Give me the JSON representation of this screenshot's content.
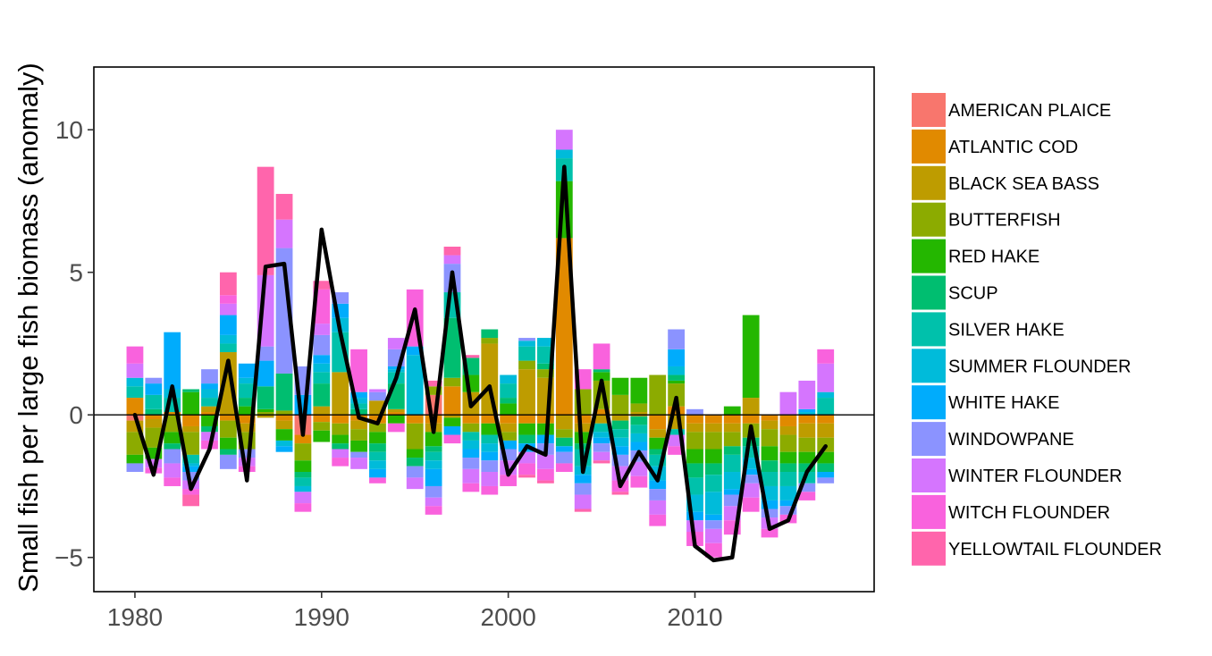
{
  "chart_data": {
    "type": "bar",
    "stacked": true,
    "title": "",
    "xlabel": "",
    "ylabel": "Small fish per large fish biomass (anomaly)",
    "xlim": [
      1977.8,
      2019.6
    ],
    "ylim": [
      -6.2,
      12.2
    ],
    "x_ticks": [
      1980,
      1990,
      2000,
      2010
    ],
    "y_ticks": [
      -5,
      0,
      5,
      10
    ],
    "y_tick_labels": [
      "−5",
      "0",
      "5",
      "10"
    ],
    "zero_line": true,
    "grid": false,
    "legend_position": "right",
    "x": [
      1980,
      1981,
      1982,
      1983,
      1984,
      1985,
      1986,
      1987,
      1988,
      1989,
      1990,
      1991,
      1992,
      1993,
      1994,
      1995,
      1996,
      1997,
      1998,
      1999,
      2000,
      2001,
      2002,
      2003,
      2004,
      2005,
      2006,
      2007,
      2008,
      2009,
      2010,
      2011,
      2012,
      2013,
      2014,
      2015,
      2016,
      2017
    ],
    "series": [
      {
        "name": "AMERICAN PLAICE",
        "color": "#F8766D",
        "values": [
          -0.2,
          0,
          0,
          0,
          0,
          0,
          0,
          0,
          0,
          -0.7,
          0,
          0,
          0,
          0,
          0,
          0,
          0.7,
          0,
          0,
          0,
          0,
          0,
          0,
          0,
          0,
          0,
          0,
          0,
          0,
          0,
          0,
          0,
          0,
          0,
          0,
          0,
          0,
          0
        ]
      },
      {
        "name": "ATLANTIC COD",
        "color": "#E18A00",
        "values": [
          0.6,
          -0.15,
          0.1,
          -0.4,
          0.1,
          -0.2,
          -0.3,
          0,
          -0.2,
          -0.3,
          -0.25,
          -0.3,
          -0.2,
          -0.3,
          0.1,
          -0.3,
          -0.3,
          1.0,
          -0.3,
          -0.3,
          -0.3,
          -0.3,
          -0.3,
          6.2,
          -0.3,
          0.2,
          0,
          -0.05,
          -0.5,
          0.3,
          -0.3,
          -0.3,
          -0.3,
          -0.3,
          -0.2,
          -0.4,
          -0.3,
          -0.3
        ]
      },
      {
        "name": "BLACK SEA BASS",
        "color": "#BE9C00",
        "values": [
          -0.4,
          -0.3,
          0,
          -0.2,
          0.2,
          2.2,
          -0.3,
          -0.1,
          -0.3,
          0,
          0.3,
          1.5,
          -0.3,
          0.5,
          0.1,
          0,
          -0.3,
          -0.1,
          0.8,
          2.5,
          -0.3,
          1.6,
          1.3,
          -0.5,
          -0.3,
          -0.3,
          -0.2,
          0.1,
          -0.3,
          -0.5,
          -0.3,
          -0.3,
          -0.3,
          0.6,
          -0.3,
          -0.3,
          -0.5,
          -0.5
        ]
      },
      {
        "name": "BUTTERFISH",
        "color": "#8CAB00",
        "values": [
          -0.8,
          -0.7,
          -0.6,
          -0.8,
          0,
          -0.6,
          -0.6,
          0.1,
          0.15,
          -0.6,
          -0.3,
          -0.4,
          -0.4,
          -0.3,
          0,
          -0.9,
          0.3,
          0.3,
          -0.3,
          0.2,
          -0.3,
          0.3,
          0.3,
          -0.3,
          0.9,
          1.0,
          0.7,
          0.3,
          1.4,
          0.8,
          -0.6,
          -0.6,
          -0.5,
          -0.5,
          -0.6,
          -0.6,
          -0.5,
          -0.5
        ]
      },
      {
        "name": "RED HAKE",
        "color": "#24B700",
        "values": [
          -0.3,
          -0.4,
          -0.4,
          0.8,
          -0.4,
          -0.4,
          0.3,
          0.1,
          -0.4,
          -0.4,
          -0.4,
          -0.3,
          -0.4,
          -0.4,
          -0.3,
          -0.3,
          -0.5,
          -0.3,
          0.6,
          -0.4,
          0.4,
          -0.4,
          -0.4,
          2.0,
          -0.4,
          0.3,
          0.6,
          0.9,
          -0.4,
          0.1,
          -0.5,
          -0.5,
          0.3,
          2.9,
          -0.5,
          -0.4,
          -0.4,
          -0.4
        ]
      },
      {
        "name": "SCUP",
        "color": "#00BE70",
        "values": [
          0,
          0.2,
          -0.2,
          0.1,
          -0.2,
          -0.2,
          0.3,
          0.8,
          1.3,
          -0.2,
          0.8,
          -0.2,
          0.2,
          -0.3,
          0.9,
          -0.3,
          -0.2,
          2.1,
          0.6,
          0.3,
          0.2,
          -0.3,
          0.2,
          -0.3,
          -0.2,
          0.1,
          -0.3,
          -0.3,
          -0.2,
          0.2,
          -0.5,
          -0.4,
          -0.3,
          -0.3,
          -0.4,
          -0.3,
          -0.3,
          -0.3
        ]
      },
      {
        "name": "SILVER HAKE",
        "color": "#00C1AB",
        "values": [
          0.4,
          0.5,
          0.5,
          -0.3,
          0.3,
          0.3,
          0.5,
          0,
          0,
          -0.3,
          0.4,
          1.4,
          0.2,
          -0.3,
          0.4,
          0,
          -0.3,
          0.9,
          -0.3,
          -0.3,
          0.5,
          0.5,
          0.6,
          0.8,
          -0.6,
          -0.3,
          -0.3,
          -0.3,
          -0.4,
          -0.2,
          -0.6,
          -0.6,
          -0.6,
          -0.4,
          -0.5,
          -0.5,
          -0.4,
          0.6
        ]
      },
      {
        "name": "SUMMER FLOUNDER",
        "color": "#00BBDA",
        "values": [
          0.3,
          0,
          0.3,
          -0.1,
          0.3,
          0.3,
          0.2,
          0,
          -0.2,
          -0.2,
          0.3,
          0.5,
          0.2,
          -0.3,
          0.1,
          2.1,
          -0.3,
          0,
          -0.3,
          -0.3,
          0.3,
          0.2,
          0.3,
          0.3,
          -0.3,
          -0.2,
          -0.3,
          -0.3,
          -0.5,
          0.3,
          -0.6,
          -0.8,
          -0.6,
          -0.4,
          -0.5,
          -0.5,
          0.1,
          0.2
        ]
      },
      {
        "name": "WHITE HAKE",
        "color": "#00ACFC",
        "values": [
          0,
          0.4,
          2.0,
          -0.2,
          0.2,
          0.7,
          0.5,
          0.9,
          -0.2,
          0.7,
          0.3,
          0.5,
          0.2,
          -0.3,
          0.1,
          0.3,
          -0.6,
          -0.3,
          -0.3,
          -0.3,
          -0.3,
          -0.3,
          -0.3,
          -0.2,
          -0.3,
          -0.2,
          -0.3,
          -0.3,
          -0.3,
          0.6,
          -0.3,
          -0.2,
          -0.2,
          -0.2,
          -0.3,
          -0.2,
          0.1,
          -0.2
        ]
      },
      {
        "name": "WINDOWPANE",
        "color": "#8B93FF",
        "values": [
          -0.3,
          0.2,
          -0.5,
          -0.3,
          0.5,
          -0.5,
          -0.3,
          0.5,
          4.4,
          1.0,
          0.7,
          0.4,
          -0.2,
          0.3,
          0.6,
          -0.4,
          -0.4,
          1.0,
          -0.4,
          -0.4,
          -0.4,
          0.1,
          -0.4,
          -0.4,
          -0.4,
          -0.3,
          -0.4,
          -0.4,
          -0.4,
          0.7,
          0.2,
          -0.3,
          -0.4,
          -0.3,
          -0.3,
          -0.3,
          -0.3,
          -0.2
        ]
      },
      {
        "name": "WINTER FLOUNDER",
        "color": "#D575FE",
        "values": [
          0.5,
          -0.3,
          -0.5,
          -0.3,
          -0.3,
          0.4,
          -0.3,
          2.5,
          1.0,
          -0.4,
          0.4,
          -0.3,
          -0.4,
          0.1,
          0.4,
          -0.4,
          -0.3,
          0.3,
          -0.5,
          -0.5,
          -0.5,
          -0.4,
          -0.5,
          0.7,
          -0.5,
          -0.3,
          -0.5,
          -0.5,
          -0.5,
          -0.4,
          -0.4,
          -0.5,
          -0.5,
          -0.5,
          -0.4,
          0.8,
          1.0,
          1.0
        ]
      },
      {
        "name": "WITCH FLOUNDER",
        "color": "#F962DD",
        "values": [
          0.6,
          -0.2,
          -0.3,
          -0.2,
          -0.3,
          0.3,
          -0.2,
          0,
          0,
          -0.3,
          1.2,
          -0.3,
          1.5,
          -0.2,
          -0.3,
          2.0,
          -0.3,
          -0.3,
          -0.3,
          -0.3,
          -0.4,
          -0.4,
          -0.4,
          -0.3,
          0.7,
          0.9,
          -0.4,
          -0.4,
          -0.4,
          -0.3,
          -0.5,
          -0.5,
          -0.5,
          -0.5,
          -0.3,
          -0.3,
          -0.3,
          0.5
        ]
      },
      {
        "name": "YELLOWTAIL FLOUNDER",
        "color": "#FF65AC",
        "values": [
          0,
          0,
          0,
          -0.4,
          0,
          0.8,
          0,
          3.8,
          0.9,
          0,
          0.3,
          0,
          0,
          0,
          0,
          0,
          0.2,
          0.3,
          0.1,
          0,
          0,
          -0.1,
          -0.1,
          0,
          -0.1,
          -0.1,
          -0.1,
          0,
          0,
          0,
          0,
          0,
          0,
          0,
          0,
          0,
          0,
          0
        ]
      }
    ],
    "total_line": {
      "color": "#000000",
      "values": [
        0,
        -2.1,
        1.0,
        -2.6,
        -1.2,
        1.9,
        -2.3,
        5.2,
        5.3,
        -0.7,
        6.5,
        2.9,
        -0.1,
        -0.3,
        1.3,
        3.7,
        -0.6,
        5.0,
        0.3,
        1.0,
        -2.1,
        -1.1,
        -1.4,
        8.7,
        -2.0,
        1.2,
        -2.5,
        -1.3,
        -2.3,
        0.6,
        -4.6,
        -5.1,
        -5.0,
        -0.4,
        -4.0,
        -3.7,
        -2.0,
        -1.1
      ]
    }
  }
}
